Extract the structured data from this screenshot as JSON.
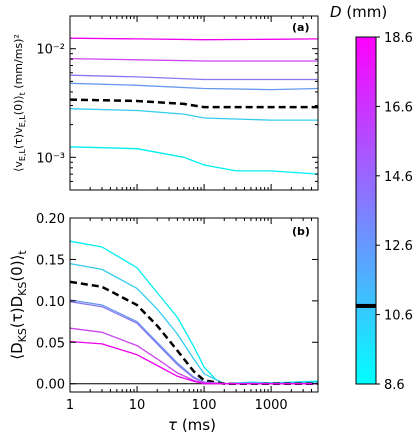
{
  "chart_data": [
    {
      "panel": "(a)",
      "type": "line",
      "ylabel": "⟨v_{E,L}(τ)v_{E,L}(0)⟩_t  (mm/ms)²",
      "y_scale": "log",
      "x_scale": "log",
      "xlim": [
        1,
        5000
      ],
      "ylim": [
        0.0005,
        0.02
      ],
      "yticks": [
        {
          "value": 0.001,
          "label": "10⁻³"
        },
        {
          "value": 0.01,
          "label": "10⁻²"
        }
      ],
      "grid": false,
      "series": [
        {
          "color": "#ee00ee",
          "dashed": false,
          "x": [
            1,
            10,
            100,
            1000,
            5000
          ],
          "y": [
            0.0125,
            0.0123,
            0.0121,
            0.0122,
            0.0123
          ]
        },
        {
          "color": "#cc44ee",
          "dashed": false,
          "x": [
            1,
            10,
            100,
            1000,
            5000
          ],
          "y": [
            0.0081,
            0.0079,
            0.0077,
            0.0077,
            0.0077
          ]
        },
        {
          "color": "#8877ee",
          "dashed": false,
          "x": [
            1,
            10,
            100,
            1000,
            5000
          ],
          "y": [
            0.0057,
            0.0055,
            0.0052,
            0.0052,
            0.0052
          ]
        },
        {
          "color": "#6699ee",
          "dashed": false,
          "x": [
            1,
            10,
            100,
            1000,
            5000
          ],
          "y": [
            0.0048,
            0.0046,
            0.0043,
            0.0042,
            0.0043
          ]
        },
        {
          "color": "#000000",
          "dashed": true,
          "x": [
            1,
            10,
            50,
            100,
            1000,
            5000
          ],
          "y": [
            0.0034,
            0.0033,
            0.0031,
            0.0029,
            0.0029,
            0.0029
          ]
        },
        {
          "color": "#33ccee",
          "dashed": false,
          "x": [
            1,
            10,
            50,
            100,
            1000,
            5000
          ],
          "y": [
            0.0028,
            0.0027,
            0.0025,
            0.0023,
            0.0022,
            0.0022
          ]
        },
        {
          "color": "#00eeee",
          "dashed": false,
          "x": [
            1,
            10,
            50,
            100,
            300,
            1000,
            5000
          ],
          "y": [
            0.00125,
            0.0012,
            0.001,
            0.00085,
            0.00075,
            0.00075,
            0.0007
          ]
        }
      ]
    },
    {
      "panel": "(b)",
      "type": "line",
      "xlabel": "τ (ms)",
      "ylabel": "⟨D_{KS}(τ)D_{KS}(0)⟩_t",
      "x_scale": "log",
      "xlim": [
        1,
        5000
      ],
      "ylim": [
        -0.01,
        0.2
      ],
      "xticks": [
        {
          "value": 1,
          "label": "1"
        },
        {
          "value": 10,
          "label": "10"
        },
        {
          "value": 100,
          "label": "100"
        },
        {
          "value": 1000,
          "label": "1000"
        }
      ],
      "yticks": [
        {
          "value": 0.0,
          "label": "0.00"
        },
        {
          "value": 0.05,
          "label": "0.05"
        },
        {
          "value": 0.1,
          "label": "0.10"
        },
        {
          "value": 0.15,
          "label": "0.15"
        },
        {
          "value": 0.2,
          "label": "0.20"
        }
      ],
      "grid": false,
      "series": [
        {
          "color": "#00eeee",
          "dashed": false,
          "x": [
            1,
            3,
            10,
            20,
            40,
            70,
            100,
            150,
            200,
            500,
            1000,
            5000
          ],
          "y": [
            0.172,
            0.165,
            0.14,
            0.11,
            0.08,
            0.045,
            0.02,
            0.005,
            0.0,
            0.002,
            0.001,
            0.003
          ]
        },
        {
          "color": "#33ccee",
          "dashed": false,
          "x": [
            1,
            3,
            10,
            20,
            40,
            70,
            100,
            200,
            500,
            1000,
            5000
          ],
          "y": [
            0.145,
            0.138,
            0.115,
            0.09,
            0.06,
            0.03,
            0.012,
            0.0,
            0.001,
            0.001,
            0.002
          ]
        },
        {
          "color": "#000000",
          "dashed": true,
          "x": [
            1,
            3,
            10,
            20,
            40,
            70,
            100,
            200,
            500,
            1000,
            5000
          ],
          "y": [
            0.123,
            0.117,
            0.095,
            0.07,
            0.04,
            0.015,
            0.004,
            0.0,
            0.0,
            0.0,
            0.0
          ]
        },
        {
          "color": "#6699ee",
          "dashed": false,
          "x": [
            1,
            3,
            10,
            20,
            40,
            70,
            100,
            200,
            500,
            1000,
            5000
          ],
          "y": [
            0.101,
            0.095,
            0.075,
            0.05,
            0.025,
            0.008,
            0.002,
            0.0,
            0.001,
            0.0,
            0.0
          ]
        },
        {
          "color": "#8877ee",
          "dashed": false,
          "x": [
            1,
            3,
            10,
            20,
            40,
            70,
            100,
            200,
            500,
            1000,
            5000
          ],
          "y": [
            0.099,
            0.093,
            0.073,
            0.048,
            0.023,
            0.007,
            0.002,
            0.0,
            0.0,
            0.0,
            0.0
          ]
        },
        {
          "color": "#cc44ee",
          "dashed": false,
          "x": [
            1,
            3,
            10,
            20,
            40,
            70,
            100,
            200,
            500,
            1000,
            5000
          ],
          "y": [
            0.067,
            0.062,
            0.046,
            0.03,
            0.013,
            0.004,
            0.001,
            0.0,
            0.0,
            0.0,
            0.0
          ]
        },
        {
          "color": "#ee00ee",
          "dashed": false,
          "x": [
            1,
            3,
            10,
            20,
            40,
            70,
            100,
            200,
            500,
            1000,
            5000
          ],
          "y": [
            0.051,
            0.048,
            0.035,
            0.022,
            0.009,
            0.003,
            0.0,
            0.0,
            0.0,
            0.0,
            0.0
          ]
        }
      ]
    }
  ],
  "colorbar": {
    "label": "D (mm)",
    "min": 8.6,
    "max": 18.6,
    "ticks": [
      {
        "value": 8.6,
        "label": "8.6"
      },
      {
        "value": 10.6,
        "label": "10.6"
      },
      {
        "value": 12.6,
        "label": "12.6"
      },
      {
        "value": 14.6,
        "label": "14.6"
      },
      {
        "value": 16.6,
        "label": "16.6"
      },
      {
        "value": 18.6,
        "label": "18.6"
      }
    ],
    "marker_value": 10.85,
    "color_low": "#00ffff",
    "color_high": "#ff00ff"
  }
}
